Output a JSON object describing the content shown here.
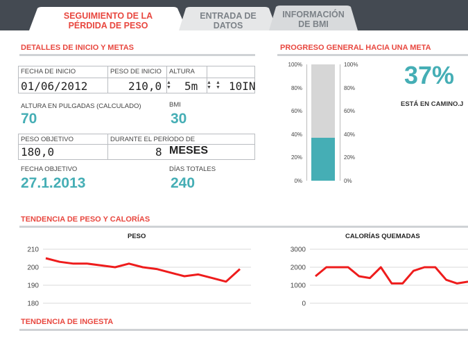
{
  "tabs": [
    {
      "line1": "SEGUIMIENTO DE LA",
      "line2": "PÉRDIDA DE PESO"
    },
    {
      "line1": "ENTRADA DE",
      "line2": "DATOS"
    },
    {
      "line1": "INFORMACIÓN",
      "line2": "DE BMI"
    }
  ],
  "colors": {
    "accent": "#e8473f",
    "teal": "#45aeb5",
    "topbar": "#444a52"
  },
  "details": {
    "title": "DETALLES DE INICIO Y METAS",
    "start_date_label": "FECHA DE INICIO",
    "start_date": "01/06/2012",
    "start_weight_label": "PESO DE INICIO",
    "start_weight": "210,0",
    "height_label": "ALTURA",
    "height_feet": "5m",
    "height_inches": "10IN",
    "height_inches_calc_label": "ALTURA EN PULGADAS (CALCULADO)",
    "height_inches_calc": "70",
    "bmi_label": "BMI",
    "bmi": "30",
    "goal_weight_label": "PESO OBJETIVO",
    "goal_weight": "180,0",
    "period_label": "DURANTE EL PERÍODO DE",
    "period_value": "8",
    "period_unit": "MESES",
    "goal_date_label": "FECHA OBJETIVO",
    "goal_date": "27.1.2013",
    "total_days_label": "DÍAS TOTALES",
    "total_days": "240"
  },
  "progress": {
    "title": "PROGRESO GENERAL HACIA UNA META",
    "percent_text": "37%",
    "percent": 0.37,
    "status": "ESTÁ EN CAMINO.J",
    "scale_left": [
      "100%",
      "80%",
      "60%",
      "40%",
      "20%",
      "0%"
    ],
    "scale_right": [
      "100%",
      "80%",
      "60%",
      "40%",
      "20%",
      "0%"
    ]
  },
  "trend": {
    "title": "TENDENCIA DE  PESO Y CALORÍAS"
  },
  "intake": {
    "title": "TENDENCIA DE INGESTA"
  },
  "chart_data": [
    {
      "type": "line",
      "title": "PESO",
      "ylim": [
        180,
        210
      ],
      "yticks": [
        "210",
        "200",
        "190",
        "180"
      ],
      "series": [
        {
          "values": [
            205,
            203,
            202,
            202,
            201,
            200,
            202,
            200,
            199,
            197,
            195,
            196,
            194,
            192,
            199
          ]
        }
      ]
    },
    {
      "type": "line",
      "title": "CALORÍAS QUEMADAS",
      "ylim": [
        0,
        3000
      ],
      "yticks": [
        "3000",
        "2000",
        "1000",
        "0"
      ],
      "series": [
        {
          "values": [
            1500,
            2000,
            2000,
            2000,
            1500,
            1400,
            2000,
            1100,
            1100,
            1800,
            2000,
            2000,
            1300,
            1100,
            1200
          ]
        }
      ]
    }
  ]
}
